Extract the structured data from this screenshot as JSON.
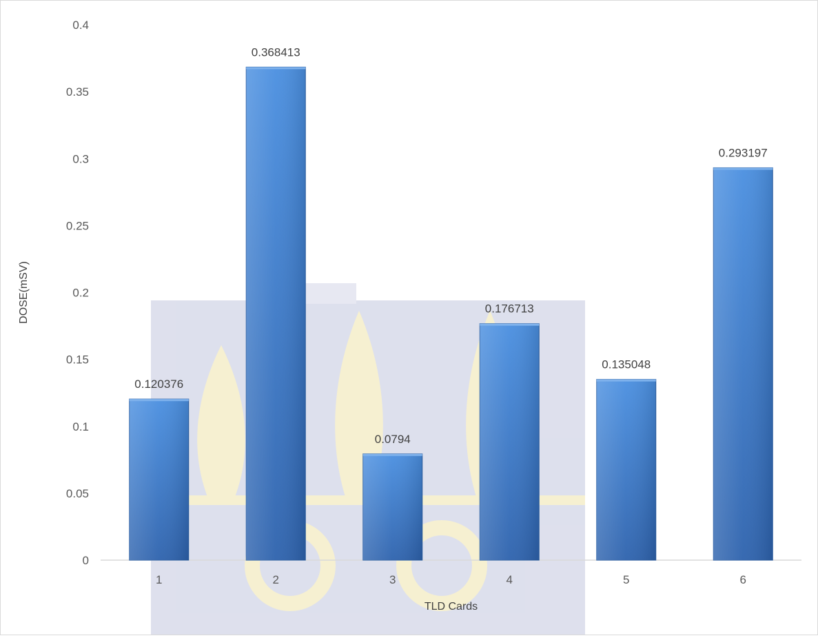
{
  "chart_data": {
    "type": "bar",
    "title": "",
    "xlabel": "TLD Cards",
    "ylabel": "DOSE(mSV)",
    "categories": [
      "1",
      "2",
      "3",
      "4",
      "5",
      "6"
    ],
    "values": [
      0.120376,
      0.368413,
      0.0794,
      0.176713,
      0.135048,
      0.293197
    ],
    "data_labels": [
      "0.120376",
      "0.368413",
      "0.0794",
      "0.176713",
      "0.135048",
      "0.293197"
    ],
    "ylim": [
      0,
      0.4
    ],
    "yticks": [
      0,
      0.05,
      0.1,
      0.15,
      0.2,
      0.25,
      0.3,
      0.35,
      0.4
    ],
    "ytick_labels": [
      "0",
      "0.05",
      "0.1",
      "0.15",
      "0.2",
      "0.25",
      "0.3",
      "0.35",
      "0.4"
    ],
    "grid": false,
    "legend": "none",
    "colors": {
      "bar_light": "#5b9be0",
      "bar_dark": "#2f6db8",
      "axis_line": "#d9d9d9",
      "watermark_panel": "#c8cbe0",
      "watermark_emblem": "#f2e6b0"
    }
  },
  "watermark": {
    "description_icon": "university-emblem-watermark"
  }
}
